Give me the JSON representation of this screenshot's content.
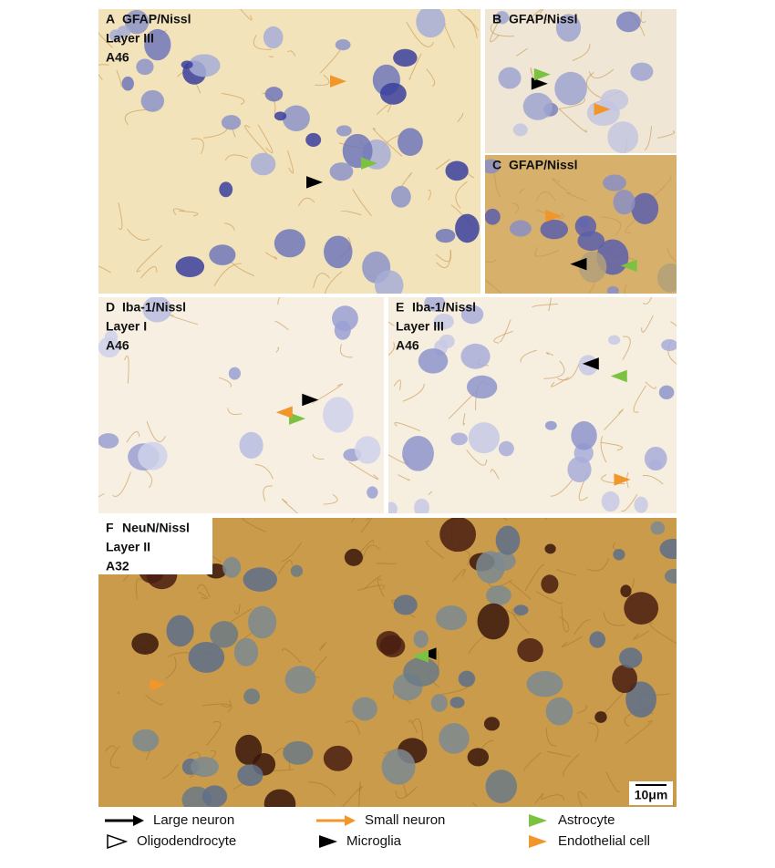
{
  "panels": [
    {
      "letter": "A",
      "stain": "GFAP/Nissl",
      "lines": [
        "Layer III",
        "A46"
      ]
    },
    {
      "letter": "B",
      "stain": "GFAP/Nissl",
      "lines": []
    },
    {
      "letter": "C",
      "stain": "GFAP/Nissl",
      "lines": []
    },
    {
      "letter": "D",
      "stain": "Iba-1/Nissl",
      "lines": [
        "Layer I",
        "A46"
      ]
    },
    {
      "letter": "E",
      "stain": "Iba-1/Nissl",
      "lines": [
        "Layer III",
        "A46"
      ]
    },
    {
      "letter": "F",
      "stain": "NeuN/Nissl",
      "lines": [
        "Layer II",
        "A32"
      ]
    }
  ],
  "scale_bar": "10μm",
  "legend": [
    "Large neuron",
    "Small neuron",
    "Astrocyte",
    "Oligodendrocyte",
    "Microglia",
    "Endothelial cell"
  ]
}
